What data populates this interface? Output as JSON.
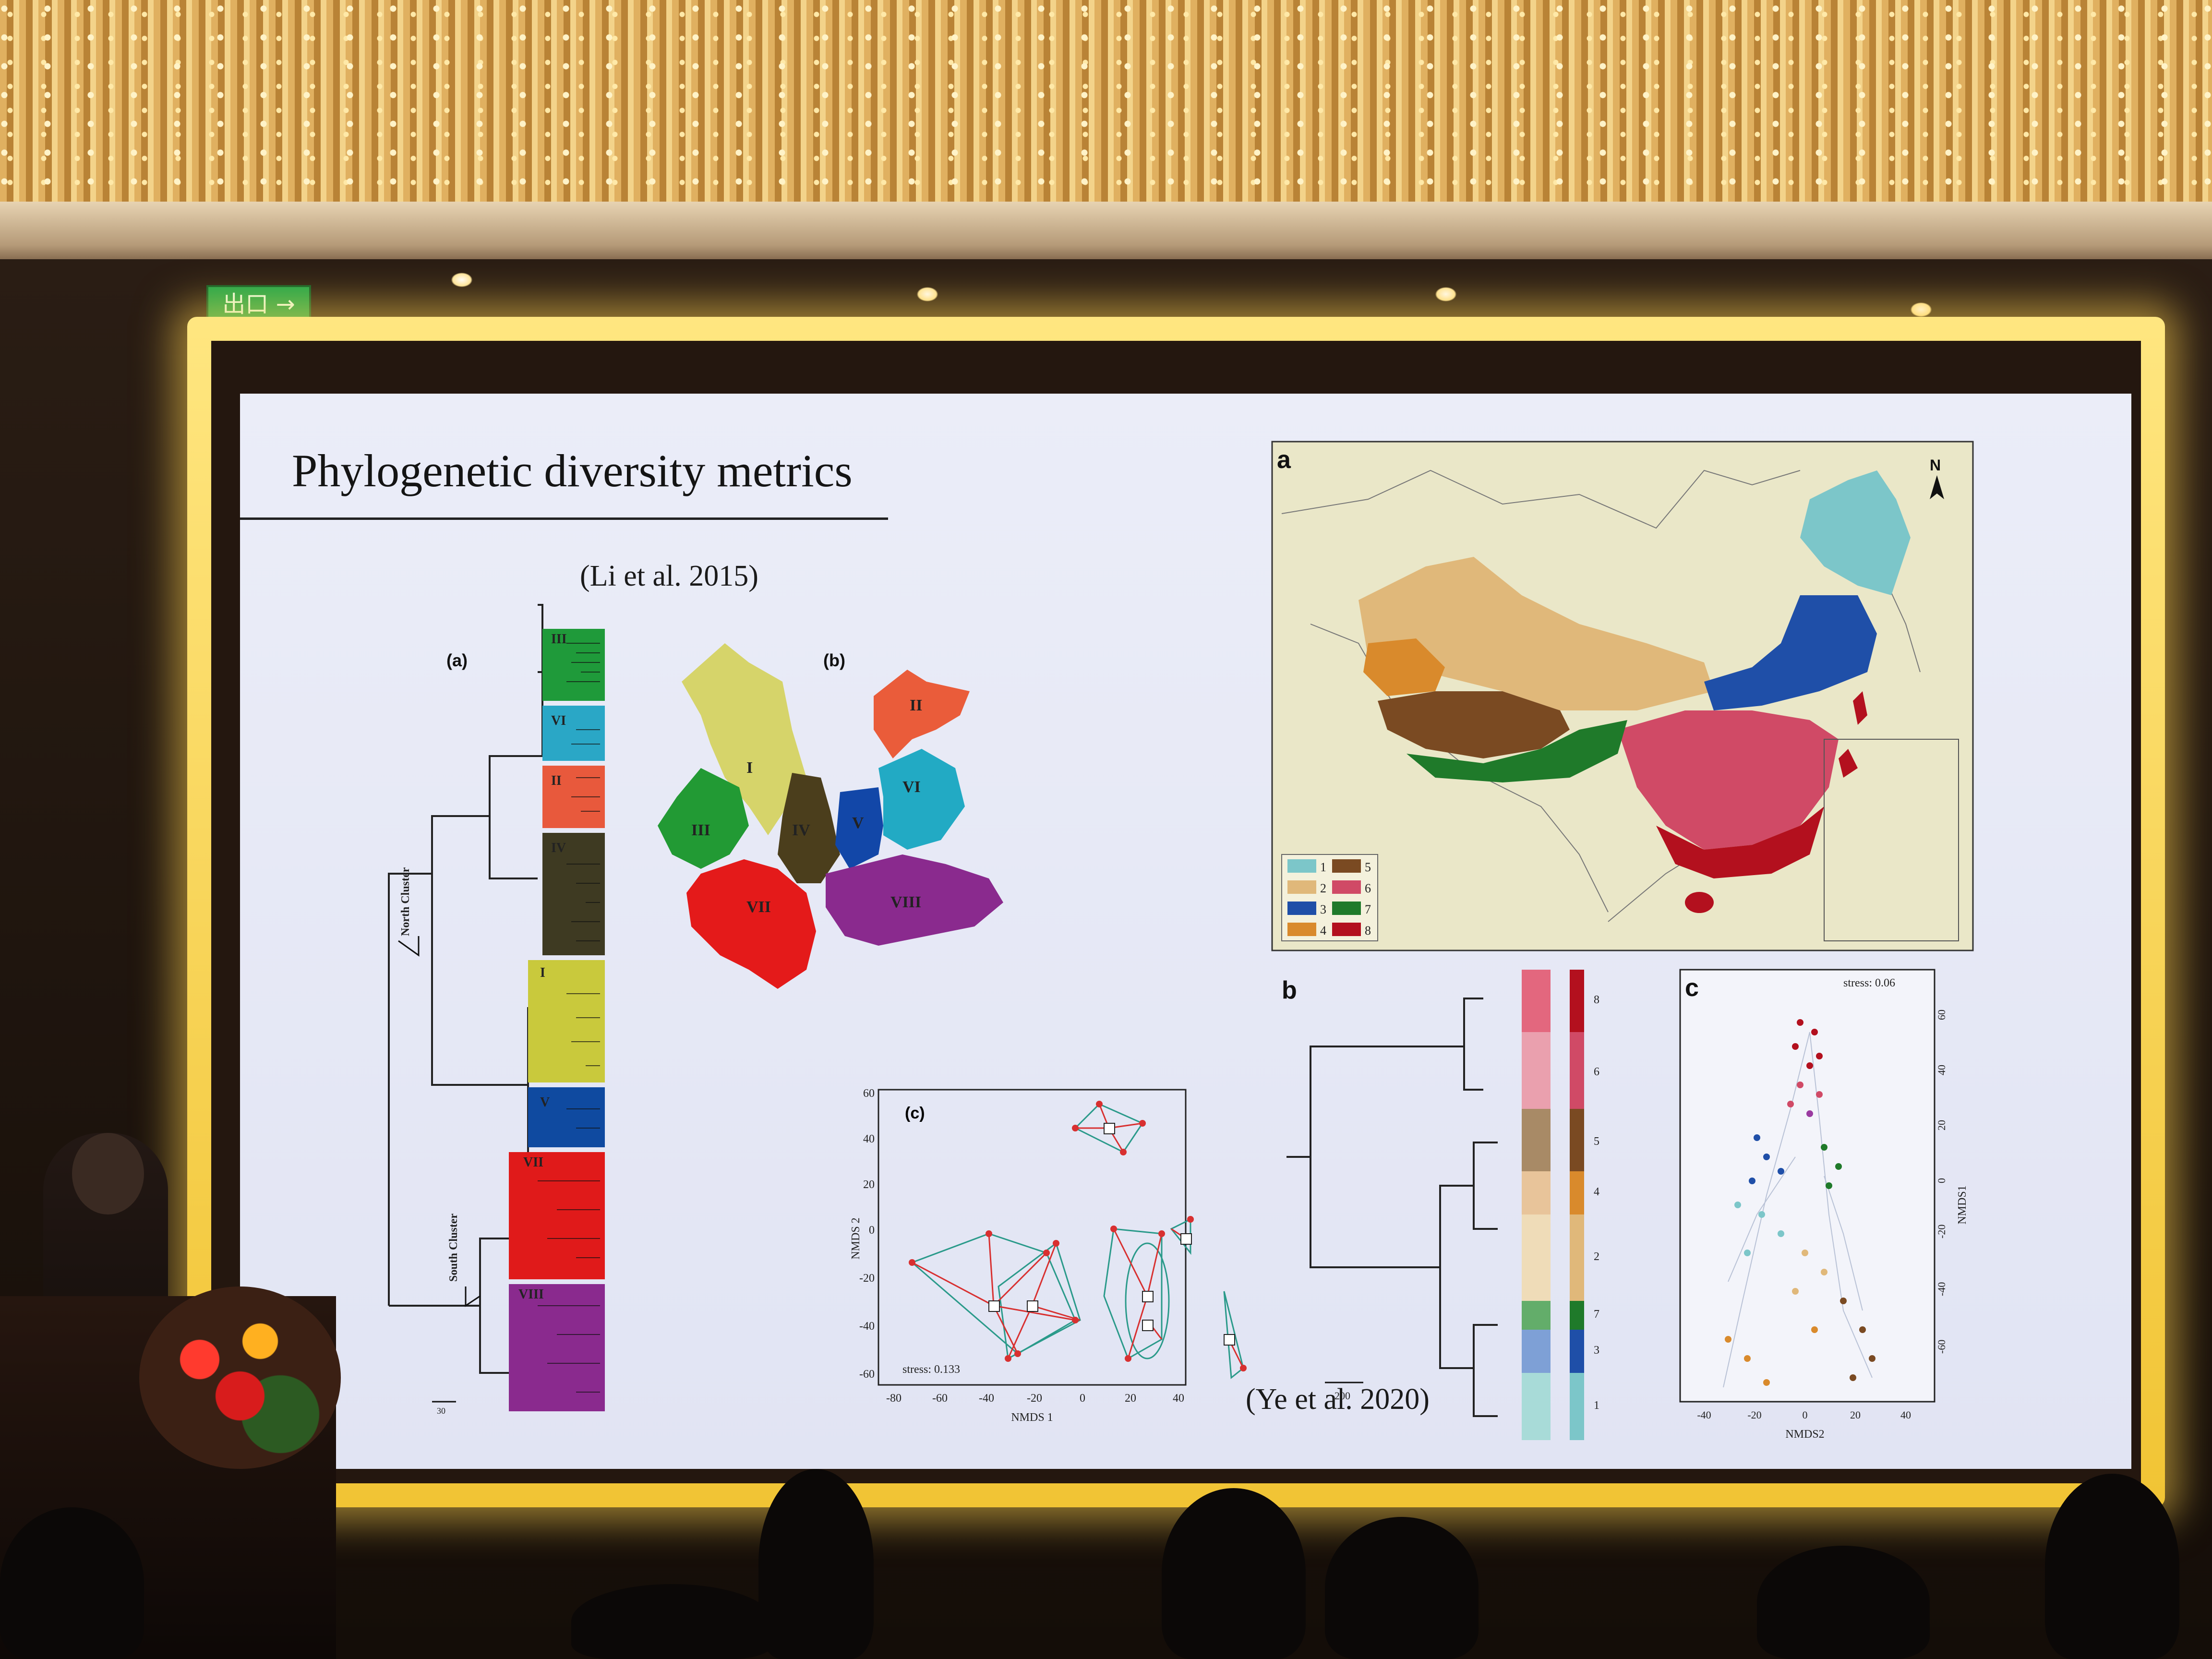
{
  "slide": {
    "title": "Phylogenetic diversity metrics",
    "left_citation": "(Li et al. 2015)",
    "right_citation": "(Ye et al. 2020)"
  },
  "venue": {
    "exit_sign_text": "出口 →"
  },
  "left_figure": {
    "panel_a_label": "(a)",
    "panel_b_label": "(b)",
    "panel_c_label": "(c)",
    "north_cluster_label": "North Cluster",
    "south_cluster_label": "South Cluster",
    "scale_value": "30",
    "clade_labels": [
      "III",
      "VI",
      "II",
      "IV",
      "I",
      "V",
      "VII",
      "VIII"
    ],
    "clade_colors": [
      "#1f9a3a",
      "#2aa7c6",
      "#e8593c",
      "#3e3a22",
      "#c9c93c",
      "#0f4aa0",
      "#e01a1a",
      "#8a2a8e"
    ],
    "map_regions": [
      {
        "label": "I",
        "color": "#d6d46a"
      },
      {
        "label": "II",
        "color": "#ea5c3a"
      },
      {
        "label": "III",
        "color": "#229a34"
      },
      {
        "label": "IV",
        "color": "#4b3e1c"
      },
      {
        "label": "V",
        "color": "#1247a8"
      },
      {
        "label": "VI",
        "color": "#22aac4"
      },
      {
        "label": "VII",
        "color": "#e41a1a"
      },
      {
        "label": "VIII",
        "color": "#8a2a8e"
      }
    ],
    "nmds": {
      "xlabel": "NMDS 1",
      "ylabel": "NMDS 2",
      "stress_text": "stress: 0.133",
      "x_ticks": [
        "-80",
        "-60",
        "-40",
        "-20",
        "0",
        "20",
        "40"
      ],
      "y_ticks": [
        "60",
        "40",
        "20",
        "0",
        "-20",
        "-40",
        "-60"
      ]
    }
  },
  "right_figure": {
    "panel_a_label": "a",
    "panel_b_label": "b",
    "panel_c_label": "c",
    "north_arrow_label": "N",
    "legend": [
      {
        "label": "1",
        "color": "#7cc6c9"
      },
      {
        "label": "2",
        "color": "#e0b87a"
      },
      {
        "label": "3",
        "color": "#1f4fa8"
      },
      {
        "label": "4",
        "color": "#d98a2c"
      },
      {
        "label": "5",
        "color": "#7a4a22"
      },
      {
        "label": "6",
        "color": "#d04a66"
      },
      {
        "label": "7",
        "color": "#1f7a2a"
      },
      {
        "label": "8",
        "color": "#b3101e"
      }
    ],
    "dendro_scale_value": "200",
    "dendro_group_labels": [
      "8",
      "6",
      "5",
      "4",
      "2",
      "7",
      "3",
      "1"
    ],
    "nmds": {
      "stress_text": "stress: 0.06",
      "xlabel": "NMDS2",
      "ylabel": "NMDS1",
      "x_ticks": [
        "-40",
        "-20",
        "0",
        "20",
        "40"
      ],
      "y_ticks": [
        "60",
        "40",
        "20",
        "0",
        "-20",
        "-40",
        "-60"
      ]
    }
  }
}
